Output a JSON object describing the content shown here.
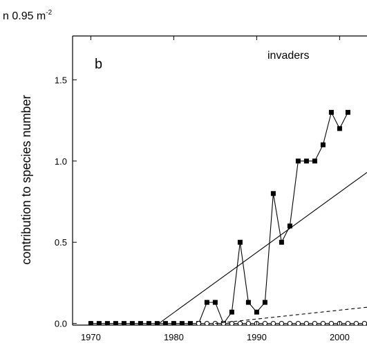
{
  "chart_data": {
    "type": "line",
    "unit_label": "n 0.95 m",
    "unit_exponent": "-2",
    "panel_label": "b",
    "title": "invaders",
    "y_label": "contribution to species number",
    "xlim": [
      1967.8,
      2003.3
    ],
    "ylim": [
      -0.01,
      1.77
    ],
    "xticks": [
      1970,
      1980,
      1990,
      2000
    ],
    "yticks": [
      {
        "value": 0,
        "label": "0.0"
      },
      {
        "value": 0.5,
        "label": "0.5"
      },
      {
        "value": 1,
        "label": "1.0"
      },
      {
        "value": 1.5,
        "label": "1.5"
      }
    ],
    "series": [
      {
        "marker": "square",
        "color": "#000000",
        "x": [
          1970,
          1971,
          1972,
          1973,
          1974,
          1975,
          1976,
          1977,
          1978,
          1979,
          1980,
          1981,
          1982,
          1983,
          1984,
          1985,
          1986,
          1987,
          1988,
          1989,
          1990,
          1991,
          1992,
          1993,
          1994,
          1995,
          1996,
          1997,
          1998,
          1999,
          2000,
          2001
        ],
        "values": [
          0,
          0,
          0,
          0,
          0,
          0,
          0,
          0,
          0,
          0,
          0,
          0,
          0,
          0,
          0.13,
          0.13,
          0,
          0.07,
          0.5,
          0.13,
          0.07,
          0.13,
          0.8,
          0.5,
          0.6,
          1.0,
          1.0,
          1.0,
          1.1,
          1.3,
          1.2,
          1.3
        ]
      },
      {
        "marker": "circle",
        "color": "#000000",
        "x": [
          1983,
          1984,
          1985,
          1986,
          1987,
          1988,
          1989,
          1990,
          1991,
          1992,
          1993,
          1994,
          1995,
          1996,
          1997,
          1998,
          1999,
          2000,
          2001,
          2002,
          2003
        ],
        "values": [
          0,
          0,
          0,
          0,
          0,
          0,
          0,
          0,
          0,
          0,
          0,
          0,
          0,
          0,
          0,
          0,
          0,
          0,
          0,
          0,
          0
        ]
      },
      {
        "marker": "none",
        "dash": false,
        "color": "#000000",
        "x": [
          1978.2,
          2003.3
        ],
        "values": [
          0,
          0.93
        ]
      },
      {
        "marker": "none",
        "dash": true,
        "color": "#000000",
        "x": [
          1985,
          2003.3
        ],
        "values": [
          0,
          0.1
        ]
      }
    ]
  }
}
